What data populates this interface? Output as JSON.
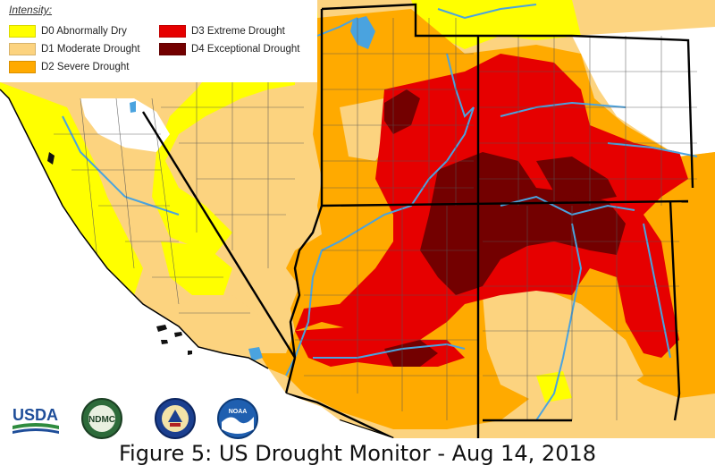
{
  "legend": {
    "title": "Intensity:",
    "items": [
      {
        "code": "D0",
        "label": "D0 Abnormally Dry",
        "color": "#ffff00"
      },
      {
        "code": "D1",
        "label": "D1 Moderate Drought",
        "color": "#fcd37f"
      },
      {
        "code": "D2",
        "label": "D2 Severe Drought",
        "color": "#ffaa00"
      },
      {
        "code": "D3",
        "label": "D3 Extreme Drought",
        "color": "#e60000"
      },
      {
        "code": "D4",
        "label": "D4 Exceptional Drought",
        "color": "#730000"
      }
    ]
  },
  "colors": {
    "none": "#ffffff",
    "ocean": "#ffffff",
    "border": "#000000",
    "county": "#555555",
    "water": "#4aa3df"
  },
  "logos": [
    {
      "name": "usda-logo",
      "text": "USDA"
    },
    {
      "name": "ndmc-logo",
      "text": "NDMC"
    },
    {
      "name": "doc-seal-logo",
      "text": ""
    },
    {
      "name": "noaa-logo",
      "text": "NOAA"
    }
  ],
  "caption": "Figure 5: US Drought Monitor - Aug 14, 2018"
}
